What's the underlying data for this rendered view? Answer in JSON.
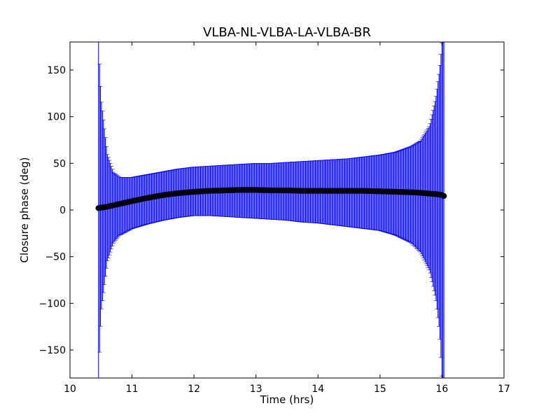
{
  "chart_data": {
    "type": "scatter",
    "title": "VLBA-NL-VLBA-LA-VLBA-BR",
    "xlabel": "Time (hrs)",
    "ylabel": "Closure phase (deg)",
    "xlim": [
      10,
      17
    ],
    "ylim": [
      -180,
      180
    ],
    "xticks": [
      10,
      11,
      12,
      13,
      14,
      15,
      16,
      17
    ],
    "yticks": [
      -150,
      -100,
      -50,
      0,
      50,
      100,
      150
    ],
    "xtick_labels": [
      "10",
      "11",
      "12",
      "13",
      "14",
      "15",
      "16",
      "17"
    ],
    "ytick_labels": [
      "−150",
      "−100",
      "−50",
      "0",
      "50",
      "100",
      "150"
    ],
    "grid": false,
    "series": [
      {
        "marker": "circle",
        "color": "#000000",
        "errorbar_color": "#0000ff",
        "x": [
          10.46,
          10.5,
          10.6,
          10.7,
          10.8,
          11.0,
          11.25,
          11.5,
          11.75,
          12.0,
          12.25,
          12.5,
          12.75,
          13.0,
          13.25,
          13.5,
          13.75,
          14.0,
          14.25,
          14.5,
          14.75,
          15.0,
          15.25,
          15.5,
          15.65,
          15.8,
          15.9,
          15.96,
          16.0,
          16.03
        ],
        "y": [
          2,
          2.5,
          3.5,
          5,
          6.5,
          9.5,
          13,
          16,
          18,
          19.5,
          20.5,
          21,
          21.5,
          21.5,
          21,
          21,
          20.5,
          20.5,
          20.5,
          20.5,
          20.5,
          20,
          19.5,
          19,
          18.5,
          17.5,
          17,
          16.5,
          16,
          15
        ],
        "err_upper": [
          180,
          120,
          60,
          40,
          35,
          35,
          38,
          41,
          44,
          46,
          47,
          48,
          49,
          50,
          50,
          51,
          52,
          53,
          54,
          55,
          57,
          59,
          62,
          68,
          74,
          90,
          120,
          150,
          180,
          180
        ],
        "err_lower": [
          -180,
          -110,
          -55,
          -35,
          -27,
          -20,
          -15,
          -11,
          -8,
          -6,
          -6,
          -7,
          -8,
          -9,
          -10,
          -11,
          -13,
          -14,
          -16,
          -18,
          -20,
          -22,
          -27,
          -35,
          -45,
          -65,
          -95,
          -130,
          -180,
          -180
        ]
      }
    ]
  }
}
